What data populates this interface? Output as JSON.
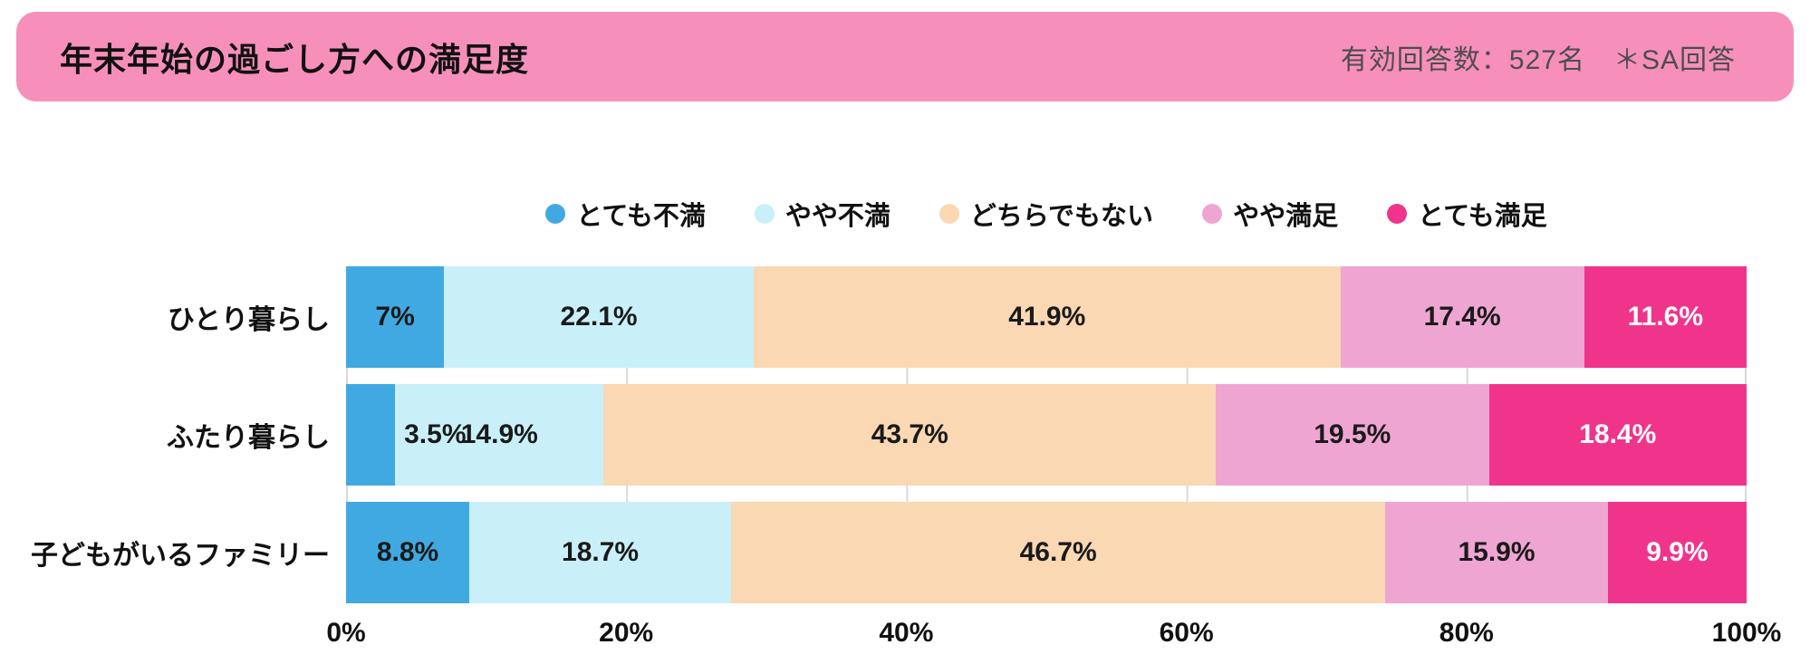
{
  "header": {
    "title": "年末年始の過ごし方への満足度",
    "meta": "有効回答数：527名　＊SA回答"
  },
  "colors": {
    "banner_pink": "#F78FBB",
    "grid_gray": "#d9d9d9"
  },
  "chart_data": {
    "type": "bar",
    "orientation": "horizontal",
    "stacked": true,
    "title": "年末年始の過ごし方への満足度",
    "xlabel": "",
    "ylabel": "",
    "xlim": [
      0,
      100
    ],
    "grid": true,
    "legend_position": "top",
    "categories": [
      "ひとり暮らし",
      "ふたり暮らし",
      "子どもがいるファミリー"
    ],
    "x_ticks": [
      "0%",
      "20%",
      "40%",
      "60%",
      "80%",
      "100%"
    ],
    "series": [
      {
        "name": "とても不満",
        "color": "#41A9E1",
        "label_color": "#1a1a1a",
        "values": [
          7,
          3.5,
          8.8
        ],
        "labels": [
          "7%",
          "3.5%",
          "8.8%"
        ]
      },
      {
        "name": "やや不満",
        "color": "#C9F0F8",
        "label_color": "#1a1a1a",
        "values": [
          22.1,
          14.9,
          18.7
        ],
        "labels": [
          "22.1%",
          "14.9%",
          "18.7%"
        ]
      },
      {
        "name": "どちらでもない",
        "color": "#FAD8B3",
        "label_color": "#1a1a1a",
        "values": [
          41.9,
          43.7,
          46.7
        ],
        "labels": [
          "41.9%",
          "43.7%",
          "46.7%"
        ]
      },
      {
        "name": "やや満足",
        "color": "#EFA5D2",
        "label_color": "#1a1a1a",
        "values": [
          17.4,
          19.5,
          15.9
        ],
        "labels": [
          "17.4%",
          "19.5%",
          "15.9%"
        ]
      },
      {
        "name": "とても満足",
        "color": "#F0348C",
        "label_color": "#ffffff",
        "values": [
          11.6,
          18.4,
          9.9
        ],
        "labels": [
          "11.6%",
          "18.4%",
          "9.9%"
        ]
      }
    ]
  }
}
